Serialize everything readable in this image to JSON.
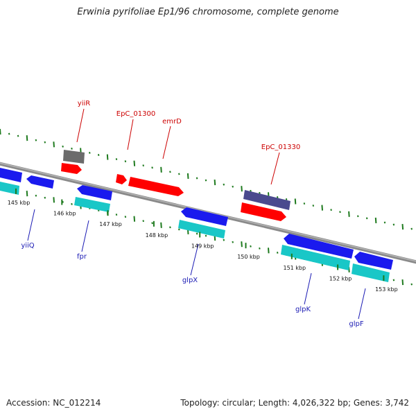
{
  "title": "Erwinia pyrifoliae Ep1/96 chromosome, complete genome",
  "footer": {
    "accession": "Accession: NC_012214",
    "summary": "Topology: circular; Length: 4,026,322 bp; Genes: 3,742"
  },
  "colors": {
    "backbone": "#8a8a8a",
    "tick": "#1e7a1e",
    "forward_cds": "#ff0000",
    "forward_label": "#cc0000",
    "reverse_cds": "#1a1aee",
    "reverse_feature": "#19c7c7",
    "reverse_label": "#1a1ab4",
    "gray_feature": "#6b6b6b",
    "purple_feature": "#4a4a8e"
  },
  "ticks": [
    {
      "kbp": 145,
      "label": "145 kbp"
    },
    {
      "kbp": 146,
      "label": "146 kbp"
    },
    {
      "kbp": 147,
      "label": "147 kbp"
    },
    {
      "kbp": 148,
      "label": "148 kbp"
    },
    {
      "kbp": 149,
      "label": "149 kbp"
    },
    {
      "kbp": 150,
      "label": "150 kbp"
    },
    {
      "kbp": 151,
      "label": "151 kbp"
    },
    {
      "kbp": 152,
      "label": "152 kbp"
    },
    {
      "kbp": 153,
      "label": "153 kbp"
    }
  ],
  "gene_labels": {
    "yiiR": "yiiR",
    "EpC_01300": "EpC_01300",
    "emrD": "emrD",
    "EpC_01330": "EpC_01330",
    "yiiQ": "yiiQ",
    "fpr": "fpr",
    "glpX": "glpX",
    "glpK": "glpK",
    "glpF": "glpF"
  }
}
